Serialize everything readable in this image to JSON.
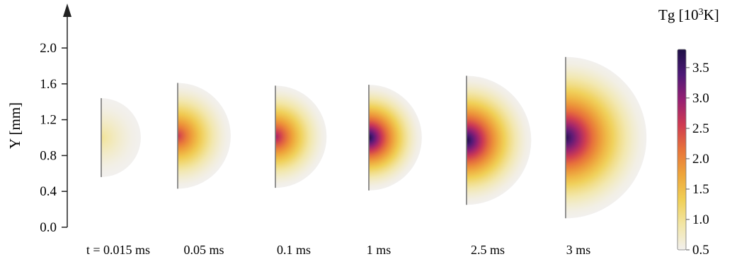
{
  "chart_data": {
    "type": "heatmap",
    "ylabel": "Y [mm]",
    "y_ticks": [
      "0.0",
      "0.4",
      "0.8",
      "1.2",
      "1.6",
      "2.0"
    ],
    "y_tick_values": [
      0.0,
      0.4,
      0.8,
      1.2,
      1.6,
      2.0
    ],
    "colorbar": {
      "title": "Tg [10",
      "title_sup": "3",
      "title_end": "K]",
      "ticks": [
        "3.5",
        "3.0",
        "2.5",
        "2.0",
        "1.5",
        "1.0",
        "0.5"
      ],
      "tick_values": [
        3.5,
        3.0,
        2.5,
        2.0,
        1.5,
        1.0,
        0.5
      ],
      "range": [
        0.5,
        3.8
      ],
      "colormap": [
        "#f2f0ee",
        "#f2e6a6",
        "#f0cf55",
        "#eea53a",
        "#e8733a",
        "#cf3a52",
        "#951f73",
        "#4d1977",
        "#1e1046"
      ]
    },
    "panels": [
      {
        "label": "t = 0.015 ms",
        "y_bottom": 0.56,
        "y_top": 1.44,
        "y_center": 1.0,
        "peak_T": 1.0
      },
      {
        "label": "0.05 ms",
        "y_bottom": 0.43,
        "y_top": 1.61,
        "y_center": 1.02,
        "peak_T": 2.6
      },
      {
        "label": "0.1 ms",
        "y_bottom": 0.44,
        "y_top": 1.58,
        "y_center": 1.01,
        "peak_T": 2.9
      },
      {
        "label": "1 ms",
        "y_bottom": 0.41,
        "y_top": 1.59,
        "y_center": 1.0,
        "peak_T": 3.8
      },
      {
        "label": "2.5 ms",
        "y_bottom": 0.25,
        "y_top": 1.69,
        "y_center": 0.97,
        "peak_T": 3.8
      },
      {
        "label": "3 ms",
        "y_bottom": 0.1,
        "y_top": 1.9,
        "y_center": 1.0,
        "peak_T": 3.7
      }
    ]
  }
}
